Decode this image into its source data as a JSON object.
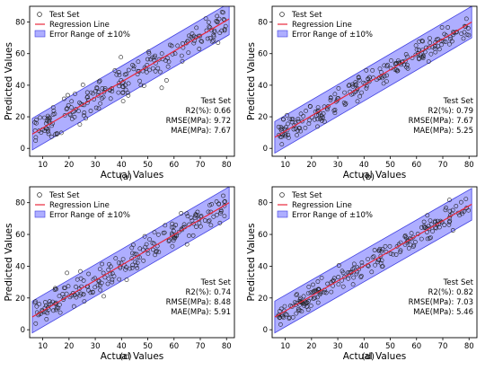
{
  "chart_data": [
    {
      "type": "scatter",
      "caption": "(a)",
      "xlabel": "Actual Values",
      "ylabel": "Predicted Values",
      "xlim": [
        5,
        83
      ],
      "ylim": [
        -5,
        90
      ],
      "xticks": [
        10,
        20,
        30,
        40,
        50,
        60,
        70,
        80
      ],
      "yticks": [
        0,
        20,
        40,
        60,
        80
      ],
      "legend": [
        "Test Set",
        "Regression Line",
        "Error Range of ±10%"
      ],
      "legend_position": "top-left",
      "metrics": {
        "title": "Test Set",
        "r2": "R2(%): 0.66",
        "rmse": "RMSE(MPa): 9.72",
        "mae": "MAE(MPa): 7.67"
      },
      "regression": {
        "x1": 6,
        "y1": 9,
        "x2": 81,
        "y2": 82
      },
      "band": {
        "lower": [
          [
            6,
            -1
          ],
          [
            81,
            72
          ]
        ],
        "upper": [
          [
            6,
            19
          ],
          [
            81,
            92
          ]
        ]
      },
      "scatter_seed": 11,
      "noise": 9.7,
      "n_points": 210
    },
    {
      "type": "scatter",
      "caption": "(b)",
      "xlabel": "Actual Values",
      "ylabel": "Predicted Values",
      "xlim": [
        5,
        83
      ],
      "ylim": [
        -5,
        90
      ],
      "xticks": [
        10,
        20,
        30,
        40,
        50,
        60,
        70,
        80
      ],
      "yticks": [
        0,
        20,
        40,
        60,
        80
      ],
      "legend": [
        "Test Set",
        "Regression Line",
        "Error Range of ±10%"
      ],
      "legend_position": "top-left",
      "metrics": {
        "title": "Test Set",
        "r2": "R2(%): 0.79",
        "rmse": "RMSE(MPa): 7.67",
        "mae": "MAE(MPa): 5.25"
      },
      "regression": {
        "x1": 6,
        "y1": 7,
        "x2": 81,
        "y2": 80
      },
      "band": {
        "lower": [
          [
            6,
            -3
          ],
          [
            81,
            70
          ]
        ],
        "upper": [
          [
            6,
            17
          ],
          [
            81,
            90
          ]
        ]
      },
      "scatter_seed": 23,
      "noise": 7.6,
      "n_points": 210
    },
    {
      "type": "scatter",
      "caption": "(c)",
      "xlabel": "Actual Values",
      "ylabel": "Predicted Values",
      "xlim": [
        5,
        83
      ],
      "ylim": [
        -5,
        90
      ],
      "xticks": [
        10,
        20,
        30,
        40,
        50,
        60,
        70,
        80
      ],
      "yticks": [
        0,
        20,
        40,
        60,
        80
      ],
      "legend": [
        "Test Set",
        "Regression Line",
        "Error Range of ±10%"
      ],
      "legend_position": "top-left",
      "metrics": {
        "title": "Test Set",
        "r2": "R2(%): 0.74",
        "rmse": "RMSE(MPa): 8.48",
        "mae": "MAE(MPa): 5.91"
      },
      "regression": {
        "x1": 6,
        "y1": 8,
        "x2": 81,
        "y2": 80
      },
      "band": {
        "lower": [
          [
            6,
            -2
          ],
          [
            81,
            70
          ]
        ],
        "upper": [
          [
            6,
            18
          ],
          [
            81,
            90
          ]
        ]
      },
      "scatter_seed": 37,
      "noise": 8.4,
      "n_points": 210
    },
    {
      "type": "scatter",
      "caption": "(d)",
      "xlabel": "Actual Values",
      "ylabel": "Predicted Values",
      "xlim": [
        5,
        83
      ],
      "ylim": [
        -5,
        90
      ],
      "xticks": [
        10,
        20,
        30,
        40,
        50,
        60,
        70,
        80
      ],
      "yticks": [
        0,
        20,
        40,
        60,
        80
      ],
      "legend": [
        "Test Set",
        "Regression Line",
        "Error Range of ±10%"
      ],
      "legend_position": "top-left",
      "metrics": {
        "title": "Test Set",
        "r2": "R2(%): 0.82",
        "rmse": "RMSE(MPa): 7.03",
        "mae": "MAE(MPa): 5.46"
      },
      "regression": {
        "x1": 6,
        "y1": 8,
        "x2": 81,
        "y2": 79
      },
      "band": {
        "lower": [
          [
            6,
            -2
          ],
          [
            81,
            69
          ]
        ],
        "upper": [
          [
            6,
            18
          ],
          [
            81,
            89
          ]
        ]
      },
      "scatter_seed": 53,
      "noise": 6.9,
      "n_points": 210
    }
  ],
  "colors": {
    "band_fill": "#6b6bff",
    "band_edge": "#4040e0",
    "regression": "#e8283c",
    "marker_edge": "#222222",
    "axis": "#000000"
  }
}
